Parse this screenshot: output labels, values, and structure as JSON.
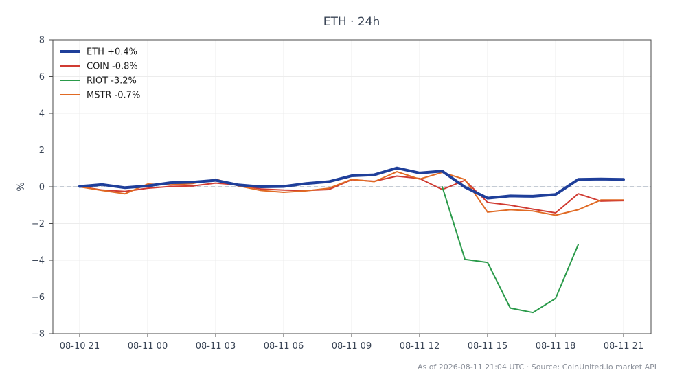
{
  "chart_data": {
    "type": "line",
    "title": "ETH · 24h",
    "xlabel": "",
    "ylabel": "%",
    "ylim": [
      -8,
      8
    ],
    "yticks": [
      8,
      6,
      4,
      2,
      0,
      -2,
      -4,
      -6,
      -8
    ],
    "xticks": [
      "08-10 21",
      "08-11 00",
      "08-11 03",
      "08-11 06",
      "08-11 09",
      "08-11 12",
      "08-11 15",
      "08-11 18",
      "08-11 21"
    ],
    "x": [
      "08-10 21",
      "08-10 22",
      "08-10 23",
      "08-11 00",
      "08-11 01",
      "08-11 02",
      "08-11 03",
      "08-11 04",
      "08-11 05",
      "08-11 06",
      "08-11 07",
      "08-11 08",
      "08-11 09",
      "08-11 10",
      "08-11 11",
      "08-11 12",
      "08-11 13",
      "08-11 14",
      "08-11 15",
      "08-11 16",
      "08-11 17",
      "08-11 18",
      "08-11 19",
      "08-11 20",
      "08-11 21"
    ],
    "grid": true,
    "reference_line": 0,
    "legend_position": "top-left",
    "series": [
      {
        "name": "ETH +0.4%",
        "color": "#1f3f9a",
        "values": [
          0.02,
          0.12,
          -0.05,
          0.05,
          0.22,
          0.25,
          0.35,
          0.1,
          0.0,
          0.02,
          0.18,
          0.28,
          0.6,
          0.65,
          1.02,
          0.75,
          0.85,
          -0.02,
          -0.62,
          -0.5,
          -0.52,
          -0.42,
          0.4,
          0.42,
          0.4
        ]
      },
      {
        "name": "COIN -0.8%",
        "color": "#d03b32",
        "values": [
          0.02,
          -0.18,
          -0.25,
          -0.08,
          0.02,
          0.05,
          0.2,
          0.1,
          -0.12,
          -0.18,
          -0.2,
          -0.15,
          0.38,
          0.3,
          0.58,
          0.45,
          -0.15,
          0.35,
          -0.85,
          -1.0,
          -1.22,
          -1.42,
          -0.38,
          -0.78,
          -0.75
        ]
      },
      {
        "name": "RIOT -3.2%",
        "color": "#2a9a4a",
        "values": [
          null,
          null,
          null,
          null,
          null,
          null,
          null,
          null,
          null,
          null,
          null,
          null,
          null,
          null,
          null,
          null,
          0.0,
          -3.95,
          -4.12,
          -6.6,
          -6.85,
          -6.08,
          -3.15,
          null,
          null
        ]
      },
      {
        "name": "MSTR -0.7%",
        "color": "#e06a24",
        "values": [
          0.0,
          -0.2,
          -0.38,
          0.15,
          0.1,
          0.18,
          0.42,
          0.05,
          -0.2,
          -0.3,
          -0.22,
          -0.08,
          0.4,
          0.28,
          0.82,
          0.42,
          0.78,
          0.4,
          -1.38,
          -1.25,
          -1.32,
          -1.55,
          -1.25,
          -0.72,
          -0.72
        ]
      }
    ],
    "footnote": "As of 2026-08-11 21:04 UTC · Source: CoinUnited.io market API"
  }
}
